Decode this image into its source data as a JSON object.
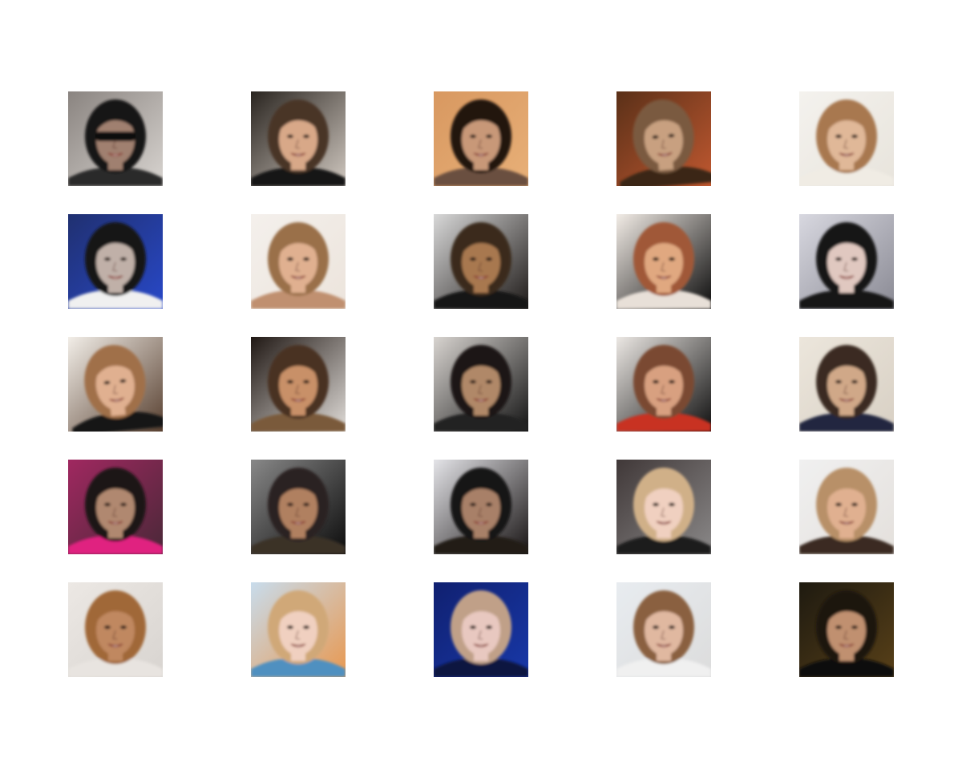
{
  "figure": {
    "rows": 5,
    "columns": 5,
    "images": [
      {
        "bg": "#8a8480",
        "bg2": "#d8d4d0",
        "hair": "#141212",
        "skin": "#a08070",
        "shirt": "#2a2a2a",
        "glasses": true,
        "tilt": 0
      },
      {
        "bg": "#2a2520",
        "bg2": "#d0c8c0",
        "hair": "#4a3628",
        "skin": "#d8a888",
        "shirt": "#141414",
        "glasses": false,
        "tilt": 0
      },
      {
        "bg": "#d89860",
        "bg2": "#e8b078",
        "hair": "#201410",
        "skin": "#c89878",
        "shirt": "#6a5040",
        "glasses": false,
        "tilt": 0
      },
      {
        "bg": "#5a3018",
        "bg2": "#c05830",
        "hair": "#7a5a40",
        "skin": "#c8a080",
        "shirt": "#3a2818",
        "glasses": false,
        "tilt": -5
      },
      {
        "bg": "#f4f2ee",
        "bg2": "#e8e4dc",
        "hair": "#a87850",
        "skin": "#e0b898",
        "shirt": "#f0ece4",
        "glasses": false,
        "tilt": 0
      },
      {
        "bg": "#203070",
        "bg2": "#2848c8",
        "hair": "#181818",
        "skin": "#c0b0a8",
        "shirt": "#f0f0f0",
        "glasses": false,
        "tilt": 0
      },
      {
        "bg": "#f4f0ec",
        "bg2": "#ece4dc",
        "hair": "#9a7048",
        "skin": "#e0b090",
        "shirt": "#c09070",
        "glasses": false,
        "tilt": 0
      },
      {
        "bg": "#d8d8d8",
        "bg2": "#1e1a18",
        "hair": "#3a2a1a",
        "skin": "#a87850",
        "shirt": "#141414",
        "glasses": false,
        "tilt": 0
      },
      {
        "bg": "#f2ece6",
        "bg2": "#0c0c0c",
        "hair": "#a05838",
        "skin": "#e0a880",
        "shirt": "#e8e0d8",
        "glasses": false,
        "tilt": 0
      },
      {
        "bg": "#d8d8e0",
        "bg2": "#8a8a94",
        "hair": "#141414",
        "skin": "#e0c8c0",
        "shirt": "#181818",
        "glasses": false,
        "tilt": 0
      },
      {
        "bg": "#f2eee8",
        "bg2": "#584030",
        "hair": "#a07048",
        "skin": "#e0b090",
        "shirt": "#181818",
        "glasses": false,
        "tilt": -6
      },
      {
        "bg": "#201814",
        "bg2": "#e0dcd8",
        "hair": "#4a3020",
        "skin": "#c89068",
        "shirt": "#7a5a3a",
        "glasses": false,
        "tilt": 0
      },
      {
        "bg": "#d8d4d0",
        "bg2": "#141414",
        "hair": "#1a1614",
        "skin": "#b08868",
        "shirt": "#202020",
        "glasses": false,
        "tilt": 0
      },
      {
        "bg": "#ece8e4",
        "bg2": "#101010",
        "hair": "#7a4a30",
        "skin": "#d8a080",
        "shirt": "#c83020",
        "glasses": false,
        "tilt": 0
      },
      {
        "bg": "#ece6dc",
        "bg2": "#d8d0c4",
        "hair": "#3a2a20",
        "skin": "#d0a888",
        "shirt": "#202840",
        "glasses": false,
        "tilt": 0
      },
      {
        "bg": "#a02860",
        "bg2": "#4a2838",
        "hair": "#1a1614",
        "skin": "#b08870",
        "shirt": "#e02080",
        "glasses": false,
        "tilt": 0
      },
      {
        "bg": "#888888",
        "bg2": "#0c0c0c",
        "hair": "#2a2020",
        "skin": "#b08060",
        "shirt": "#3a3028",
        "glasses": false,
        "tilt": 0
      },
      {
        "bg": "#e4e4e8",
        "bg2": "#181414",
        "hair": "#141212",
        "skin": "#a88068",
        "shirt": "#201a18",
        "glasses": false,
        "tilt": 0
      },
      {
        "bg": "#403838",
        "bg2": "#8a8888",
        "hair": "#d0b088",
        "skin": "#f0d0c0",
        "shirt": "#1a1a1a",
        "glasses": false,
        "tilt": 0
      },
      {
        "bg": "#f0f0f0",
        "bg2": "#e4e0dc",
        "hair": "#b89068",
        "skin": "#e0b090",
        "shirt": "#3a2a20",
        "glasses": false,
        "tilt": 0
      },
      {
        "bg": "#ece8e4",
        "bg2": "#d8d4d0",
        "hair": "#a06838",
        "skin": "#c08860",
        "shirt": "#e8e4e0",
        "glasses": false,
        "tilt": 0
      },
      {
        "bg": "#c8dcec",
        "bg2": "#e89850",
        "hair": "#d0a878",
        "skin": "#f0d0c0",
        "shirt": "#5090c0",
        "glasses": false,
        "tilt": 0
      },
      {
        "bg": "#102070",
        "bg2": "#1838a8",
        "hair": "#c0a088",
        "skin": "#e8c8c0",
        "shirt": "#0c1840",
        "glasses": false,
        "tilt": 0
      },
      {
        "bg": "#e8ecf0",
        "bg2": "#dcdcdc",
        "hair": "#8a6040",
        "skin": "#e0b8a0",
        "shirt": "#f0f0f0",
        "glasses": false,
        "tilt": 0
      },
      {
        "bg": "#1e1a10",
        "bg2": "#584018",
        "hair": "#1e1410",
        "skin": "#c09070",
        "shirt": "#101010",
        "glasses": false,
        "tilt": 0
      }
    ]
  }
}
